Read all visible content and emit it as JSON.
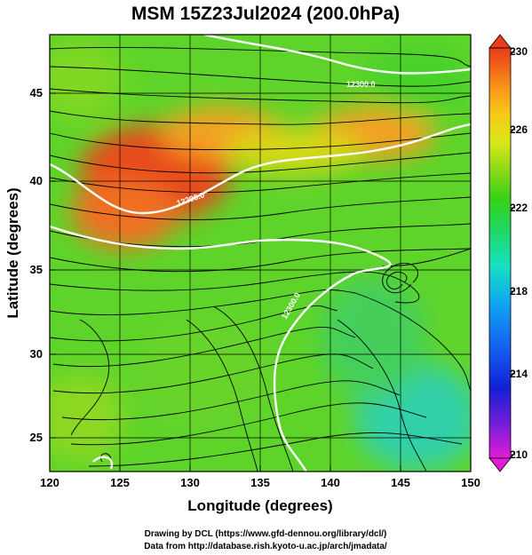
{
  "title": "MSM 15Z23Jul2024 (200.0hPa)",
  "x_axis": {
    "label": "Longitude (degrees)",
    "range": [
      120,
      150
    ],
    "ticks": [
      {
        "value": 120,
        "label": "120"
      },
      {
        "value": 125,
        "label": "125"
      },
      {
        "value": 130,
        "label": "130"
      },
      {
        "value": 135,
        "label": "135"
      },
      {
        "value": 140,
        "label": "140"
      },
      {
        "value": 145,
        "label": "145"
      },
      {
        "value": 150,
        "label": "150"
      }
    ]
  },
  "y_axis": {
    "label": "Latitude  (degrees)",
    "range": [
      22.4,
      47.6
    ],
    "ticks": [
      {
        "value": 25,
        "label": "25"
      },
      {
        "value": 30,
        "label": "30"
      },
      {
        "value": 35,
        "label": "35"
      },
      {
        "value": 40,
        "label": "40"
      },
      {
        "value": 45,
        "label": "45"
      }
    ]
  },
  "colorbar": {
    "range": [
      210,
      230
    ],
    "ticks": [
      {
        "value": 210,
        "label": "210"
      },
      {
        "value": 214,
        "label": "214"
      },
      {
        "value": 218,
        "label": "218"
      },
      {
        "value": 222,
        "label": "222"
      },
      {
        "value": 226,
        "label": "226"
      },
      {
        "value": 230,
        "label": "230"
      }
    ],
    "colors": [
      "#e21cd6",
      "#7a1dd8",
      "#1220d4",
      "#1460f0",
      "#10a8f0",
      "#18e0c0",
      "#20d860",
      "#34d214",
      "#8ad818",
      "#d8e818",
      "#f8c818",
      "#f89818",
      "#f06818",
      "#e83c1c"
    ]
  },
  "contour_labels": [
    {
      "text": "12300.0"
    },
    {
      "text": "12200.0"
    },
    {
      "text": "12300.0"
    }
  ],
  "credits": {
    "line1": "Drawing by DCL (https://www.gfd-dennou.org/library/dcl/)",
    "line2": "Data from http://database.rish.kyoto-u.ac.jp/arch/jmadata/"
  },
  "colors": {
    "contour": "#ffffff",
    "streamline": "#000000",
    "grid": "#000000",
    "coast": "#000000"
  }
}
